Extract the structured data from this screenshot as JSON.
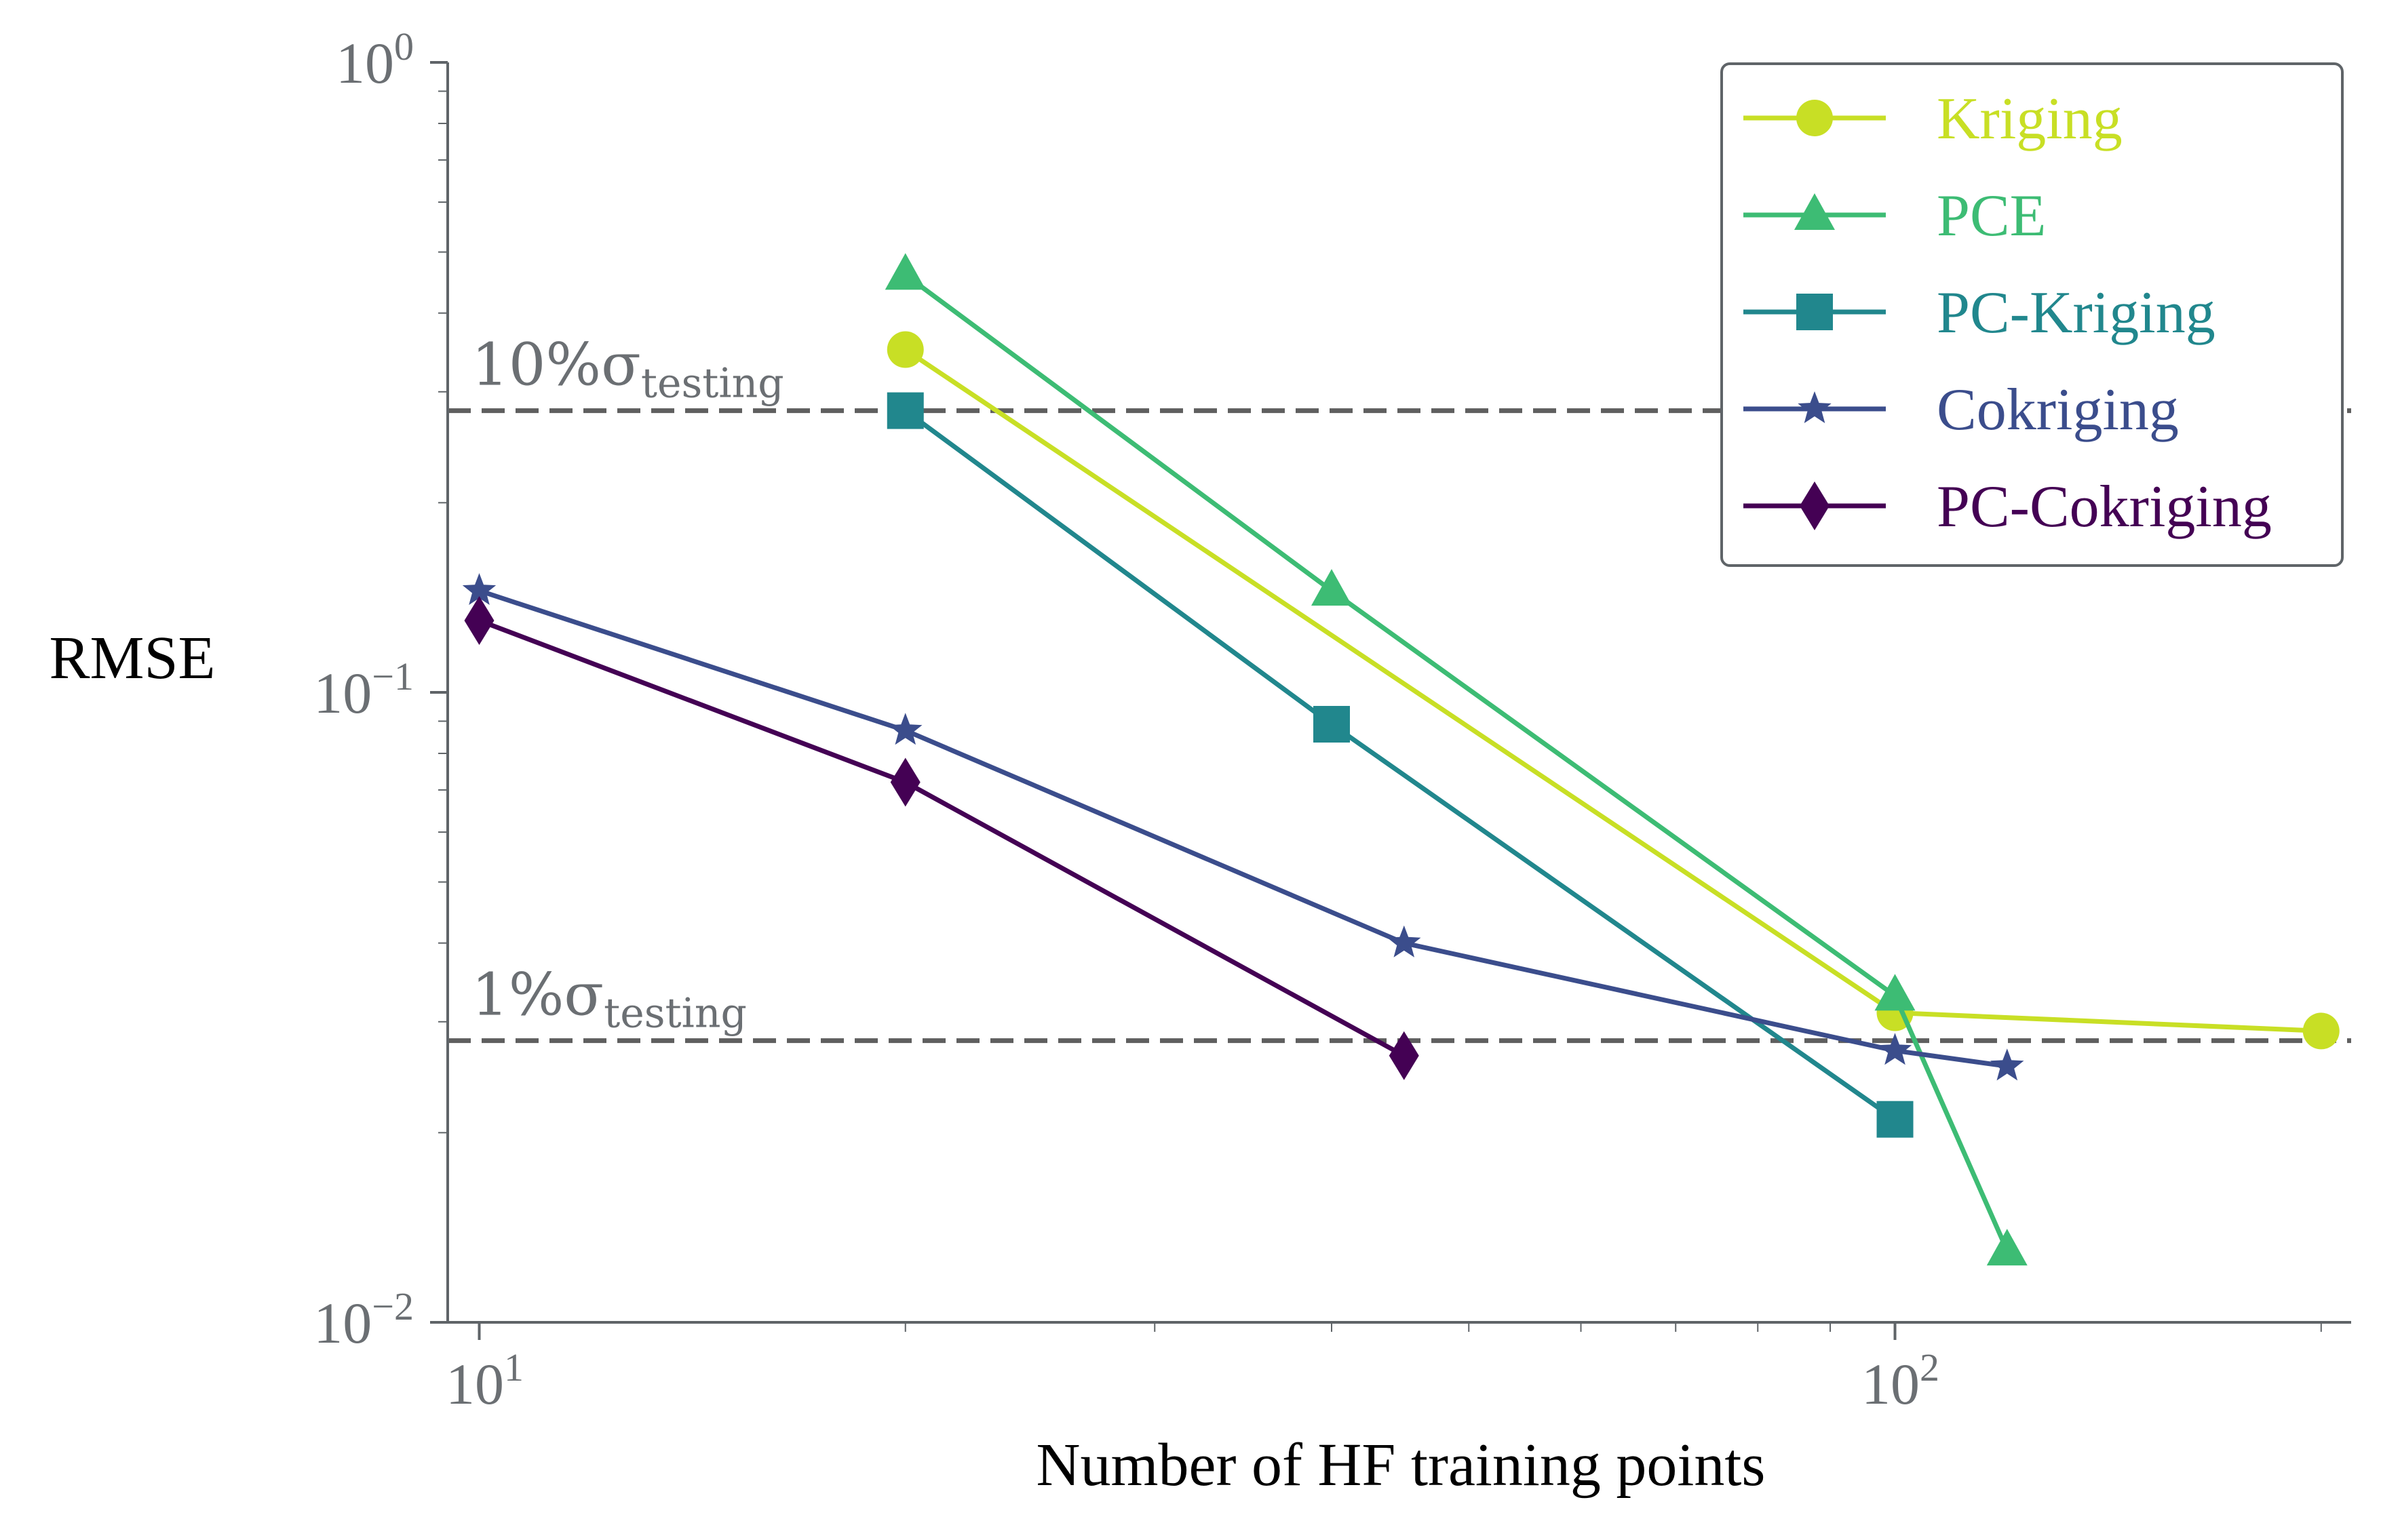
{
  "chart_data": {
    "type": "line",
    "xscale": "log",
    "yscale": "log",
    "xlim": [
      9.5,
      210
    ],
    "ylim": [
      0.01,
      1
    ],
    "xlabel": "Number of HF training points",
    "ylabel": "RMSE",
    "x_ticks": [
      {
        "value": 10,
        "base": "10",
        "exp": "1"
      },
      {
        "value": 100,
        "base": "10",
        "exp": "2"
      }
    ],
    "y_ticks": [
      {
        "value": 1,
        "base": "10",
        "exp": "0"
      },
      {
        "value": 0.1,
        "base": "10",
        "exp": "−1"
      },
      {
        "value": 0.01,
        "base": "10",
        "exp": "−2"
      }
    ],
    "reference_lines": [
      {
        "name": "ten-percent",
        "value": 0.28,
        "label_main": "10%σ",
        "label_sub": "testing"
      },
      {
        "name": "one-percent",
        "value": 0.028,
        "label_main": "1%σ",
        "label_sub": "testing"
      }
    ],
    "series": [
      {
        "name": "Kriging",
        "color": "#c8df25",
        "marker": "circle",
        "x": [
          20,
          100,
          200
        ],
        "y": [
          0.35,
          0.031,
          0.029
        ]
      },
      {
        "name": "PCE",
        "color": "#3dbc74",
        "marker": "triangle",
        "x": [
          20,
          40,
          100,
          120
        ],
        "y": [
          0.46,
          0.145,
          0.033,
          0.013
        ]
      },
      {
        "name": "PC-Kriging",
        "color": "#21878d",
        "marker": "square",
        "x": [
          20,
          40,
          100
        ],
        "y": [
          0.28,
          0.089,
          0.021
        ]
      },
      {
        "name": "Cokriging",
        "color": "#3b4d8c",
        "marker": "star",
        "x": [
          10,
          20,
          45,
          100,
          120
        ],
        "y": [
          0.145,
          0.087,
          0.04,
          0.027,
          0.0255
        ]
      },
      {
        "name": "PC-Cokriging",
        "color": "#440154",
        "marker": "diamond",
        "x": [
          10,
          20,
          45
        ],
        "y": [
          0.13,
          0.072,
          0.0265
        ]
      }
    ],
    "legend_position": "top-right"
  }
}
